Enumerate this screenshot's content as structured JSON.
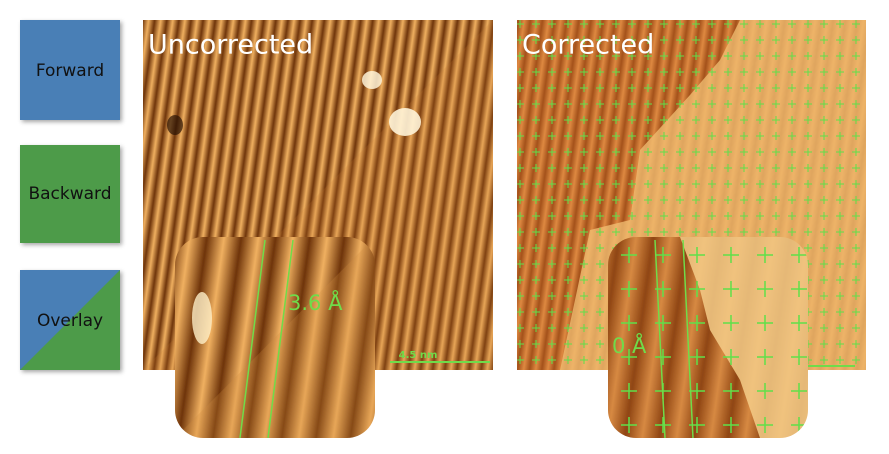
{
  "legend": {
    "forward": "Forward",
    "backward": "Backward",
    "overlay": "Overlay"
  },
  "panels": [
    {
      "title": "Uncorrected",
      "inset_label": "3.6 Å",
      "scale_bar": "4.5 nm"
    },
    {
      "title": "Corrected",
      "inset_label": "0 Å"
    }
  ]
}
